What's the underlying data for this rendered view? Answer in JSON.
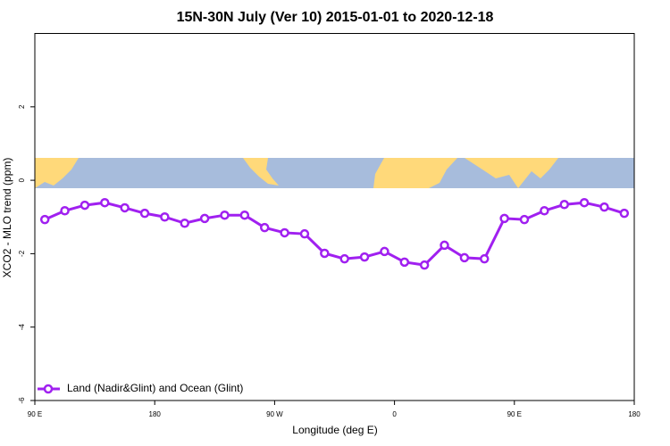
{
  "chart_data": {
    "type": "line",
    "title": "15N-30N July (Ver 10)   2015-01-01 to 2020-12-18",
    "x_label": "Longitude (deg E)",
    "y_label": "XCO2 - MLO trend (ppm)",
    "x": [
      97.5,
      112.5,
      127.5,
      142.5,
      157.5,
      172.5,
      187.5,
      202.5,
      217.5,
      232.5,
      247.5,
      262.5,
      277.5,
      292.5,
      307.5,
      322.5,
      337.5,
      352.5,
      367.5,
      382.5,
      397.5,
      412.5,
      427.5,
      442.5,
      457.5,
      472.5,
      487.5,
      502.5,
      517.5,
      532.5
    ],
    "series": [
      {
        "name": "Land (Nadir&Glint) and Ocean (Glint)",
        "color": "#a020f0",
        "values": [
          -1.07,
          -0.83,
          -0.68,
          -0.61,
          -0.75,
          -0.9,
          -1.0,
          -1.17,
          -1.04,
          -0.95,
          -0.95,
          -1.29,
          -1.43,
          -1.46,
          -1.99,
          -2.14,
          -2.09,
          -1.94,
          -2.23,
          -2.31,
          -1.77,
          -2.11,
          -2.14,
          -1.04,
          -1.07,
          -0.83,
          -0.66,
          -0.61,
          -0.73,
          -0.9
        ]
      }
    ],
    "xlim": [
      90,
      540
    ],
    "xticks": [
      {
        "value": 90,
        "label": "90 E"
      },
      180,
      {
        "value": 270,
        "label": "90 W"
      },
      {
        "value": 360,
        "label": "0"
      },
      {
        "value": 450,
        "label": "90 E"
      },
      {
        "value": 540,
        "label": "180"
      }
    ],
    "ylim": [
      -6,
      4
    ],
    "yticks": [
      -6,
      -4,
      -2,
      0,
      2
    ],
    "legend": "bottom-left"
  }
}
